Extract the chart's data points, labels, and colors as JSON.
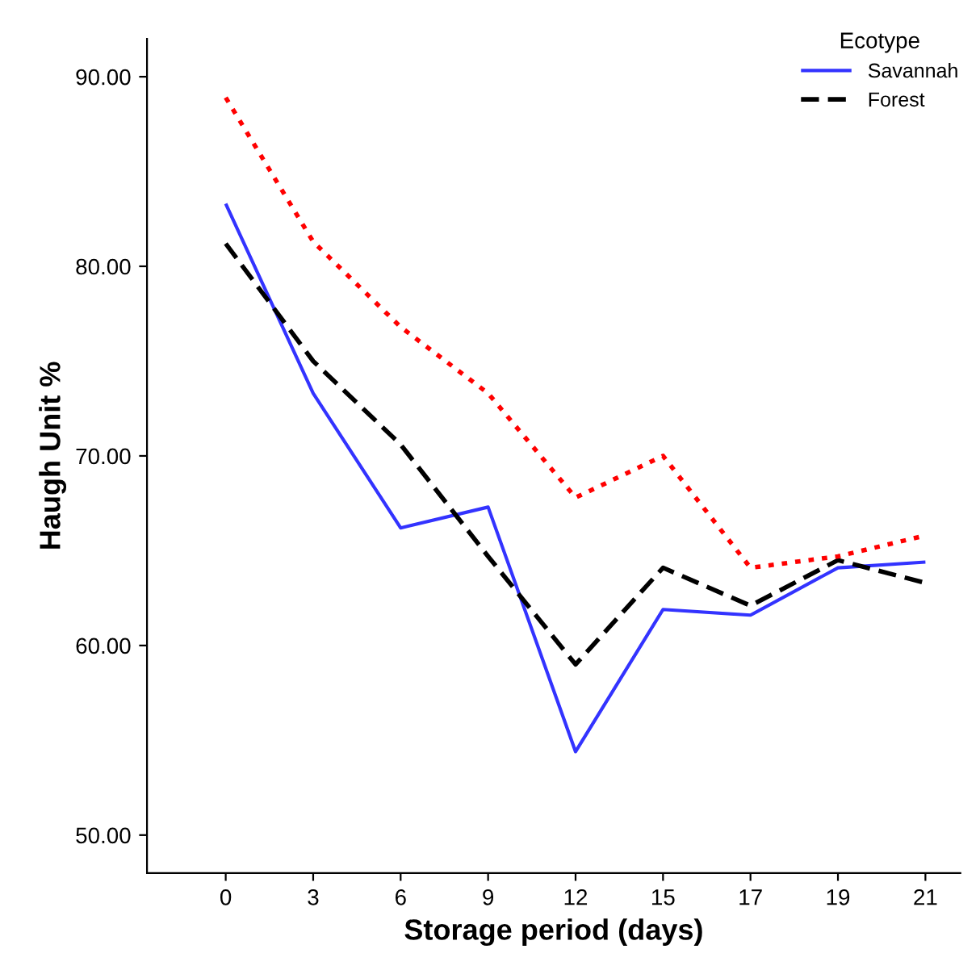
{
  "chart_data": {
    "type": "line",
    "xlabel": "Storage period (days)",
    "ylabel": "Haugh Unit %",
    "legend_title": "Ecotype",
    "legend": "top right",
    "grid": false,
    "categories": [
      "0",
      "3",
      "6",
      "9",
      "12",
      "15",
      "17",
      "19",
      "21"
    ],
    "ylim": [
      48,
      92
    ],
    "yticks": [
      {
        "value": 50,
        "label": "50.00"
      },
      {
        "value": 60,
        "label": "60.00"
      },
      {
        "value": 70,
        "label": "70.00"
      },
      {
        "value": 80,
        "label": "80.00"
      },
      {
        "value": 90,
        "label": "90.00"
      }
    ],
    "series": [
      {
        "name": "Savannah",
        "color": "#3333ff",
        "line_style": "solid",
        "values": [
          83.3,
          73.3,
          66.2,
          67.3,
          54.4,
          61.9,
          61.6,
          64.1,
          64.4
        ]
      },
      {
        "name": "Forest",
        "color": "#000000",
        "line_style": "dashed",
        "values": [
          81.2,
          75.0,
          70.6,
          64.7,
          59.0,
          64.1,
          62.1,
          64.5,
          63.3
        ]
      },
      {
        "color": "#ff0000",
        "line_style": "dotted",
        "values": [
          88.9,
          81.3,
          76.8,
          73.3,
          67.8,
          70.0,
          64.1,
          64.7,
          65.8
        ]
      }
    ]
  }
}
